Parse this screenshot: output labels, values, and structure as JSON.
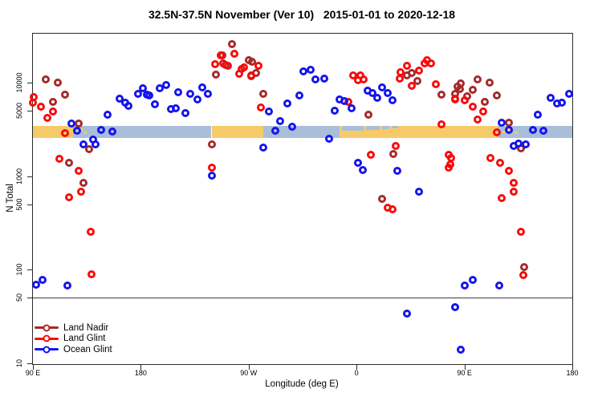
{
  "title": "32.5N-37.5N November (Ver 10)   2015-01-01 to 2020-12-18",
  "legend": {
    "items": [
      {
        "label": "Land Nadir",
        "color": "#A52A2A"
      },
      {
        "label": "Land Glint",
        "color": "#FA0A0A"
      },
      {
        "label": "Ocean Glint",
        "color": "#1414EE"
      }
    ]
  },
  "chart_data": {
    "type": "scatter",
    "title": "32.5N-37.5N November (Ver 10)   2015-01-01 to 2020-12-18",
    "xlabel": "Longitude (deg E)",
    "ylabel": "N Total",
    "x_axis": {
      "note": "longitude in continuous degrees east, axis spans 90E eastward around the globe to 180 (450 deg total)",
      "range": [
        90,
        540
      ],
      "ticks": [
        {
          "lon": 90,
          "label": "90 E"
        },
        {
          "lon": 180,
          "label": "180"
        },
        {
          "lon": 270,
          "label": "90 W"
        },
        {
          "lon": 360,
          "label": "0"
        },
        {
          "lon": 450,
          "label": "90 E"
        },
        {
          "lon": 540,
          "label": "180"
        }
      ]
    },
    "y_axis": {
      "scale": "log10",
      "range": [
        10,
        33000
      ],
      "ticks": [
        {
          "n": 10,
          "label": "10"
        },
        {
          "n": 50,
          "label": "50"
        },
        {
          "n": 100,
          "label": "100"
        },
        {
          "n": 500,
          "label": "500"
        },
        {
          "n": 1000,
          "label": "1000"
        },
        {
          "n": 5000,
          "label": "5000"
        },
        {
          "n": 10000,
          "label": "10000"
        }
      ]
    },
    "reference_line_n": 50,
    "map_band": {
      "center_n": 3000,
      "land_color": "#F7CA69",
      "ocean_color": "#A9BED9",
      "segments": [
        {
          "from": 90,
          "to": 123.5,
          "type": "land"
        },
        {
          "from": 123.5,
          "to": 138,
          "type": "islands"
        },
        {
          "from": 138,
          "to": 239,
          "type": "ocean"
        },
        {
          "from": 239,
          "to": 282,
          "type": "land"
        },
        {
          "from": 282,
          "to": 346,
          "type": "ocean"
        },
        {
          "from": 346,
          "to": 398,
          "type": "inland-sea"
        },
        {
          "from": 398,
          "to": 478,
          "type": "land"
        },
        {
          "from": 478,
          "to": 499,
          "type": "islands"
        },
        {
          "from": 499,
          "to": 540,
          "type": "ocean"
        }
      ]
    },
    "series": [
      {
        "name": "Land Nadir",
        "color": "#A52A2A",
        "points": [
          [
            101,
            10800
          ],
          [
            111,
            10000
          ],
          [
            117,
            7430
          ],
          [
            107,
            6220
          ],
          [
            128,
            3650
          ],
          [
            137,
            1940
          ],
          [
            120,
            1390
          ],
          [
            132,
            847
          ],
          [
            256,
            25800
          ],
          [
            248,
            19500
          ],
          [
            251,
            15400
          ],
          [
            270,
            17300
          ],
          [
            273,
            16700
          ],
          [
            276,
            12600
          ],
          [
            272,
            11700
          ],
          [
            243,
            12200
          ],
          [
            282,
            7570
          ],
          [
            239,
            2180
          ],
          [
            406,
            12600
          ],
          [
            402,
            11900
          ],
          [
            411,
            10400
          ],
          [
            431,
            7430
          ],
          [
            444,
            9050
          ],
          [
            442,
            7580
          ],
          [
            370,
            4540
          ],
          [
            391,
            1730
          ],
          [
            381,
            571
          ],
          [
            447,
            9800
          ],
          [
            446,
            8530
          ],
          [
            457,
            8360
          ],
          [
            461,
            10800
          ],
          [
            471,
            10000
          ],
          [
            452,
            7150
          ],
          [
            467,
            6220
          ],
          [
            477,
            7290
          ],
          [
            487,
            3730
          ],
          [
            497,
            1980
          ],
          [
            500,
            107
          ]
        ]
      },
      {
        "name": "Land Glint",
        "color": "#FA0A0A",
        "points": [
          [
            91,
            7000
          ],
          [
            90,
            6100
          ],
          [
            97,
            5520
          ],
          [
            107,
            4910
          ],
          [
            102,
            4190
          ],
          [
            117,
            2880
          ],
          [
            112,
            1530
          ],
          [
            128,
            1140
          ],
          [
            130,
            682
          ],
          [
            120,
            594
          ],
          [
            138,
            255
          ],
          [
            139,
            89
          ],
          [
            247,
            19500
          ],
          [
            258,
            20300
          ],
          [
            242,
            15700
          ],
          [
            249,
            16000
          ],
          [
            253,
            15100
          ],
          [
            264,
            14000
          ],
          [
            266,
            14500
          ],
          [
            262,
            12400
          ],
          [
            272,
            11900
          ],
          [
            278,
            15100
          ],
          [
            280,
            5420
          ],
          [
            239,
            1230
          ],
          [
            357,
            11900
          ],
          [
            363,
            11900
          ],
          [
            361,
            10600
          ],
          [
            366,
            10800
          ],
          [
            402,
            15100
          ],
          [
            397,
            12900
          ],
          [
            396,
            11000
          ],
          [
            419,
            17300
          ],
          [
            417,
            16000
          ],
          [
            422,
            16000
          ],
          [
            412,
            13400
          ],
          [
            406,
            9230
          ],
          [
            426,
            9610
          ],
          [
            442,
            6730
          ],
          [
            353,
            6220
          ],
          [
            431,
            3580
          ],
          [
            393,
            2100
          ],
          [
            372,
            1690
          ],
          [
            437,
            1690
          ],
          [
            438,
            1330
          ],
          [
            386,
            460
          ],
          [
            390,
            442
          ],
          [
            442,
            6600
          ],
          [
            450,
            6470
          ],
          [
            457,
            5520
          ],
          [
            466,
            4910
          ],
          [
            461,
            4030
          ],
          [
            477,
            2940
          ],
          [
            439,
            1560
          ],
          [
            437,
            1230
          ],
          [
            472,
            1560
          ],
          [
            480,
            1390
          ],
          [
            487,
            1140
          ],
          [
            491,
            847
          ],
          [
            491,
            682
          ],
          [
            481,
            582
          ],
          [
            497,
            255
          ],
          [
            499,
            88
          ]
        ]
      },
      {
        "name": "Ocean Glint",
        "color": "#1414EE",
        "points": [
          [
            122,
            3650
          ],
          [
            127,
            3050
          ],
          [
            132,
            2180
          ],
          [
            140,
            2460
          ],
          [
            142,
            2180
          ],
          [
            152,
            4540
          ],
          [
            147,
            3120
          ],
          [
            156,
            3000
          ],
          [
            162,
            6730
          ],
          [
            167,
            6100
          ],
          [
            170,
            5640
          ],
          [
            178,
            7580
          ],
          [
            182,
            8710
          ],
          [
            185,
            7430
          ],
          [
            187,
            7290
          ],
          [
            192,
            5860
          ],
          [
            196,
            8710
          ],
          [
            201,
            9420
          ],
          [
            205,
            5210
          ],
          [
            211,
            7890
          ],
          [
            221,
            7580
          ],
          [
            227,
            6600
          ],
          [
            231,
            8870
          ],
          [
            236,
            7580
          ],
          [
            209,
            5310
          ],
          [
            217,
            4720
          ],
          [
            287,
            4910
          ],
          [
            296,
            3870
          ],
          [
            302,
            5980
          ],
          [
            306,
            3370
          ],
          [
            292,
            3050
          ],
          [
            312,
            7290
          ],
          [
            316,
            13200
          ],
          [
            322,
            13700
          ],
          [
            326,
            10800
          ],
          [
            282,
            2020
          ],
          [
            239,
            1010
          ],
          [
            333,
            11000
          ],
          [
            346,
            6600
          ],
          [
            350,
            6350
          ],
          [
            356,
            5310
          ],
          [
            342,
            5010
          ],
          [
            369,
            8200
          ],
          [
            373,
            7730
          ],
          [
            377,
            6870
          ],
          [
            381,
            8870
          ],
          [
            386,
            7730
          ],
          [
            390,
            6470
          ],
          [
            337,
            2510
          ],
          [
            361,
            1390
          ],
          [
            365,
            1160
          ],
          [
            394,
            1140
          ],
          [
            412,
            682
          ],
          [
            522,
            6870
          ],
          [
            527,
            5980
          ],
          [
            531,
            6100
          ],
          [
            537,
            7580
          ],
          [
            511,
            4540
          ],
          [
            507,
            3120
          ],
          [
            516,
            3050
          ],
          [
            495,
            2230
          ],
          [
            501,
            2180
          ],
          [
            491,
            2100
          ],
          [
            487,
            3120
          ],
          [
            481,
            3730
          ],
          [
            98,
            78
          ],
          [
            93,
            69
          ],
          [
            119,
            68
          ],
          [
            450,
            68
          ],
          [
            457,
            78
          ],
          [
            479,
            68
          ],
          [
            442,
            40
          ],
          [
            402,
            34
          ],
          [
            447,
            14
          ]
        ]
      }
    ]
  }
}
